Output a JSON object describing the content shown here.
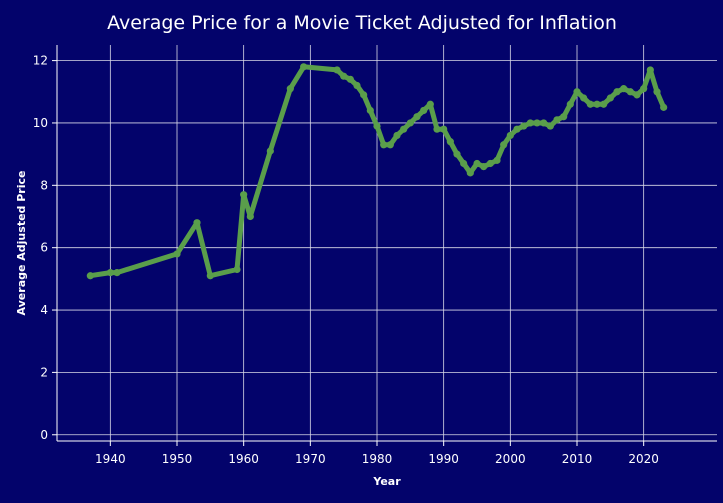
{
  "chart_data": {
    "type": "line",
    "title": "Average Price for a Movie Ticket Adjusted for Inflation",
    "xlabel": "Year",
    "ylabel": "Average Adjusted Price",
    "xlim": [
      1932,
      2031
    ],
    "ylim": [
      -0.2,
      12.5
    ],
    "x_ticks": [
      1940,
      1950,
      1960,
      1970,
      1980,
      1990,
      2000,
      2010,
      2020
    ],
    "y_ticks": [
      0,
      2,
      4,
      6,
      8,
      10,
      12
    ],
    "grid": true,
    "line_color": "#5a9e4b",
    "background_color": "#03036b",
    "series": [
      {
        "x": [
          1937,
          1940,
          1941,
          1950,
          1953,
          1955,
          1959,
          1960,
          1961,
          1964,
          1967,
          1969,
          1974,
          1975,
          1976,
          1977,
          1978,
          1979,
          1980,
          1981,
          1982,
          1983,
          1984,
          1985,
          1986,
          1987,
          1988,
          1989,
          1990,
          1991,
          1992,
          1993,
          1994,
          1995,
          1996,
          1997,
          1998,
          1999,
          2000,
          2001,
          2002,
          2003,
          2004,
          2005,
          2006,
          2007,
          2008,
          2009,
          2010,
          2011,
          2012,
          2013,
          2014,
          2015,
          2016,
          2017,
          2018,
          2019,
          2020,
          2021,
          2022,
          2023
        ],
        "y": [
          5.1,
          5.2,
          5.2,
          5.8,
          6.8,
          5.1,
          5.3,
          7.7,
          7.0,
          9.1,
          11.1,
          11.8,
          11.7,
          11.5,
          11.4,
          11.2,
          10.9,
          10.4,
          9.9,
          9.3,
          9.3,
          9.6,
          9.8,
          10.0,
          10.2,
          10.4,
          10.6,
          9.8,
          9.8,
          9.4,
          9.0,
          8.7,
          8.4,
          8.7,
          8.6,
          8.7,
          8.8,
          9.3,
          9.6,
          9.8,
          9.9,
          10.0,
          10.0,
          10.0,
          9.9,
          10.1,
          10.2,
          10.6,
          11.0,
          10.8,
          10.6,
          10.6,
          10.6,
          10.8,
          11.0,
          11.1,
          11.0,
          10.9,
          11.1,
          11.7,
          11.0,
          10.5
        ]
      }
    ]
  }
}
